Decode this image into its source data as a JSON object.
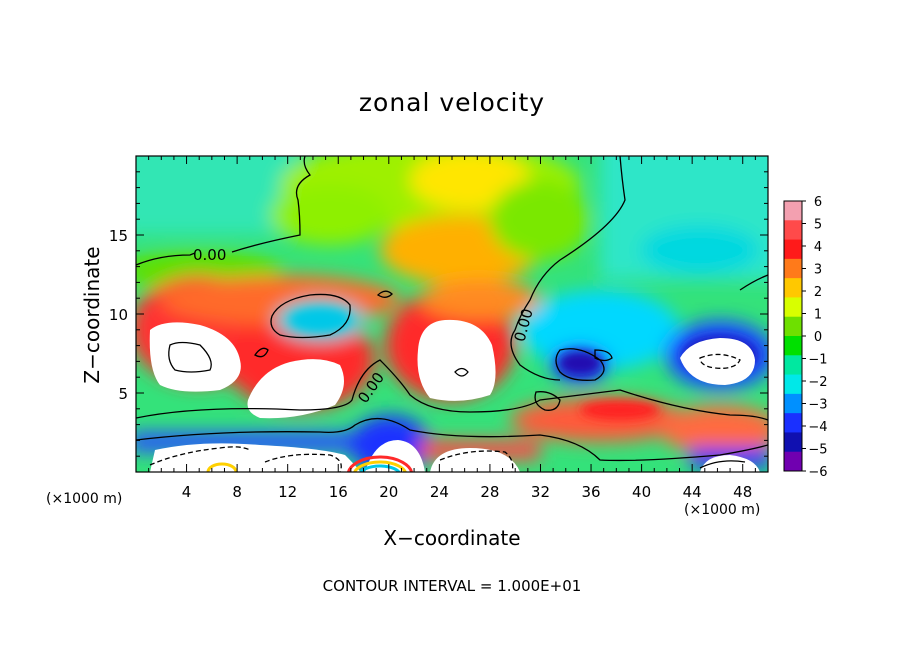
{
  "chart_data": {
    "type": "heatmap",
    "title": "zonal velocity",
    "xlabel": "X−coordinate",
    "ylabel": "Z−coordinate",
    "x_unit_left": "(×1000 m)",
    "x_unit_right": "(×1000 m)",
    "xlim": [
      0,
      50
    ],
    "ylim": [
      0,
      20
    ],
    "x_ticks": [
      "4",
      "8",
      "12",
      "16",
      "20",
      "24",
      "28",
      "32",
      "36",
      "40",
      "44",
      "48"
    ],
    "y_ticks": [
      "5",
      "10",
      "15"
    ],
    "colorbar_ticks": [
      "6",
      "5",
      "4",
      "3",
      "2",
      "1",
      "0",
      "−1",
      "−2",
      "−3",
      "−4",
      "−5",
      "−6"
    ],
    "colorbar_range": [
      -6,
      6
    ],
    "contour_labels": [
      "0.00",
      "0.00",
      "0.00"
    ],
    "contour_note": "CONTOUR INTERVAL = 1.000E+01",
    "regions_above_range": "white (|u| > 6)",
    "features": [
      {
        "x": 5,
        "z": 7.5,
        "value": 8
      },
      {
        "x": 13,
        "z": 5.5,
        "value": 8
      },
      {
        "x": 27,
        "z": 6.5,
        "value": 8
      },
      {
        "x": 46,
        "z": 7,
        "value": -8
      },
      {
        "x": 35,
        "z": 7,
        "value": -6
      },
      {
        "x": 15,
        "z": 10,
        "value": -2.5
      },
      {
        "x": 36,
        "z": 10,
        "value": -2
      }
    ]
  },
  "colors": {
    "colorbar": [
      "#f3a0b0",
      "#ff4a4a",
      "#ff1a1a",
      "#ff7a1a",
      "#ffc800",
      "#d8ff00",
      "#6ee000",
      "#00e000",
      "#00e8a0",
      "#00e8e8",
      "#0090ff",
      "#1a30ff",
      "#1010b0",
      "#7000b0"
    ]
  }
}
